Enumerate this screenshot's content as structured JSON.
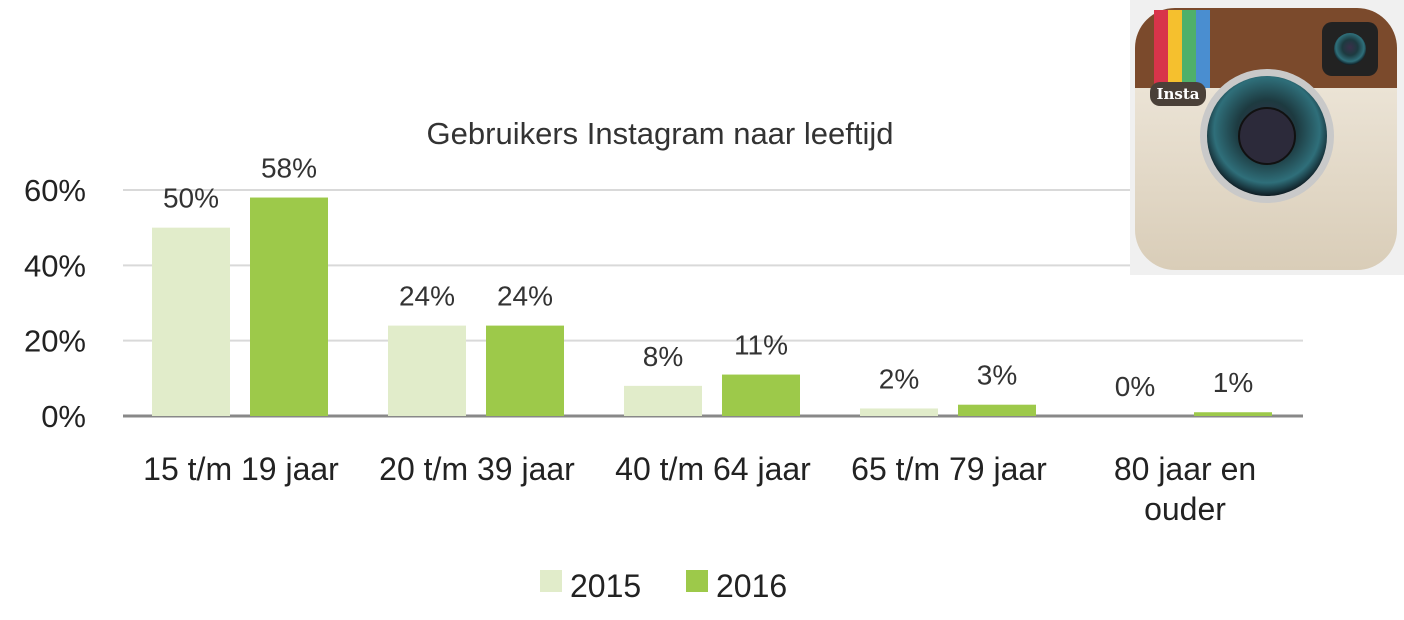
{
  "chart_data": {
    "type": "bar",
    "title": "Gebruikers Instagram naar leeftijd",
    "categories": [
      [
        "15 t/m 19 jaar"
      ],
      [
        "20 t/m 39 jaar"
      ],
      [
        "40 t/m 64 jaar"
      ],
      [
        "65 t/m 79 jaar"
      ],
      [
        "80 jaar en",
        "ouder"
      ]
    ],
    "series": [
      {
        "name": "2015",
        "color": "#e1ecca",
        "values": [
          50,
          24,
          8,
          2,
          0
        ],
        "labels": [
          "50%",
          "24%",
          "8%",
          "2%",
          "0%"
        ]
      },
      {
        "name": "2016",
        "color": "#9dc94a",
        "values": [
          58,
          24,
          11,
          3,
          1
        ],
        "labels": [
          "58%",
          "24%",
          "11%",
          "3%",
          "1%"
        ]
      }
    ],
    "yticks": [
      0,
      20,
      40,
      60
    ],
    "ytick_labels": [
      "0%",
      "20%",
      "40%",
      "60%"
    ],
    "ylim": [
      0,
      60
    ],
    "grid": true,
    "legend": "bottom-center",
    "xlabel": "",
    "ylabel": ""
  },
  "logo": {
    "text": "Insta"
  }
}
